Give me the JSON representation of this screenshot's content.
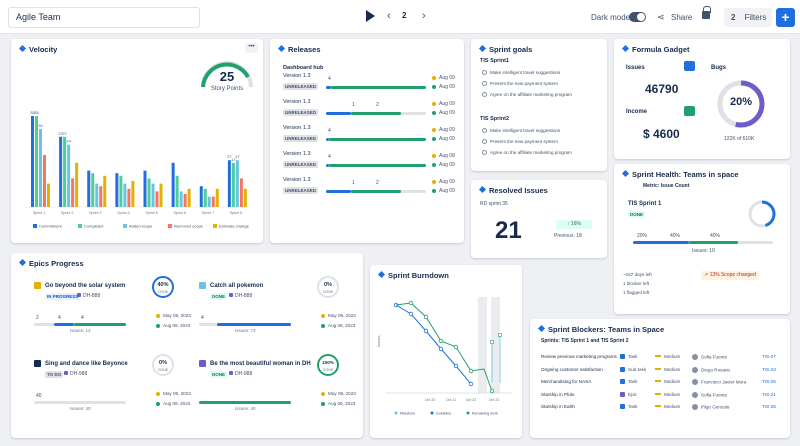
{
  "header": {
    "title": "Agile Team",
    "page": "2",
    "dark_mode_label": "Dark mode",
    "share_label": "Share",
    "filters_count": "2",
    "filters_label": "Filters",
    "add_label": "+"
  },
  "velocity": {
    "title": "Velocity",
    "gauge_value": "25",
    "gauge_label": "Story Points",
    "more": "•••",
    "chart_data": {
      "type": "bar",
      "categories": [
        "Sprint 1",
        "Sprint 2",
        "Sprint 3",
        "Sprint 4",
        "Sprint 5",
        "Sprint 6",
        "Sprint 7",
        "Sprint 8"
      ],
      "series": [
        {
          "name": "Commitment",
          "color": "#1f6fde",
          "values": [
            35,
            27,
            14,
            13,
            14,
            17,
            8,
            18
          ]
        },
        {
          "name": "Completed",
          "color": "#4bce97",
          "values": [
            35,
            27,
            13,
            12,
            11,
            12,
            7,
            17
          ]
        },
        {
          "name": "Added scope",
          "color": "#6cc3e0",
          "values": [
            30,
            24,
            9,
            9,
            9,
            6,
            4,
            18
          ]
        },
        {
          "name": "Removed scope",
          "color": "#f87462",
          "values": [
            20,
            11,
            8,
            7,
            6,
            5,
            4,
            11
          ]
        },
        {
          "name": "Estimate change",
          "color": "#e2b203",
          "values": [
            9,
            17,
            12,
            10,
            9,
            7,
            7,
            7
          ]
        }
      ],
      "data_labels": [
        "35",
        "35",
        "30",
        "27",
        "27",
        "24",
        "27",
        "17",
        "17",
        "17",
        "17",
        "18",
        "18",
        "17",
        "17"
      ],
      "ylim": [
        0,
        40
      ]
    }
  },
  "releases": {
    "title": "Releases",
    "hub": "Dashboard hub",
    "unreleased": "UNRELEASED",
    "items": [
      {
        "name": "Version 1.3",
        "a": "4",
        "b": "",
        "c": "",
        "d1": "Aug 09",
        "d2": "Aug 09",
        "blue": 0.05,
        "green": 0.95
      },
      {
        "name": "Version 1.3",
        "a": "1",
        "b": "1",
        "c": "2",
        "d1": "Aug 09",
        "d2": "Aug 09",
        "blue": 0.25,
        "green": 0.5
      },
      {
        "name": "Version 1.3",
        "a": "4",
        "b": "",
        "c": "",
        "d1": "Aug 09",
        "d2": "Aug 09",
        "blue": 0.03,
        "green": 0.97
      },
      {
        "name": "Version 1.3",
        "a": "4",
        "b": "",
        "c": "",
        "d1": "Aug 08",
        "d2": "Aug 09",
        "blue": 0.03,
        "green": 0.97
      },
      {
        "name": "Version 1.3",
        "a": "1",
        "b": "1",
        "c": "2",
        "d1": "Aug 09",
        "d2": "Aug 09",
        "blue": 0.25,
        "green": 0.5
      }
    ]
  },
  "sprint_goals": {
    "title": "Sprint goals",
    "groups": [
      {
        "name": "TIS Sprint1",
        "items": [
          "Make intelligent travel suggestions",
          "Present the new payment system",
          "Agree on the affiliate marketing program"
        ]
      },
      {
        "name": "TIS Sprint2",
        "items": [
          "Make intelligent travel suggestions",
          "Present the new payment system",
          "Agree on the affiliate marketing program"
        ]
      }
    ]
  },
  "resolved": {
    "title": "Resolved Issues",
    "sprint": "RD sprint 35",
    "value": "21",
    "change": "↑ 16%",
    "previous": "Previous: 18"
  },
  "formula": {
    "title": "Formula Gadget",
    "issues_label": "Issues",
    "issues_value": "46790",
    "bugs_label": "Bugs",
    "income_label": "Income",
    "income_value": "$ 4600",
    "pct": "20%",
    "pct_value": 0.2,
    "sub": "122K of 610K"
  },
  "epics": {
    "title": "Epics Progress",
    "items": [
      {
        "name": "Go beyond the solar system",
        "status": "IN PROGRESS",
        "key": "DH-888",
        "pct": "40%",
        "pct_value": 0.4,
        "done": "DONE",
        "n1": "2",
        "n2": "4",
        "n3": "4",
        "issues": "Issues: 12",
        "date1": "May 09, 2023",
        "date2": "Aug 09, 2023",
        "color": "#e2b203"
      },
      {
        "name": "Catch all pokemon",
        "status": "DONE",
        "key": "DH-888",
        "pct": "0%",
        "pct_value": 0.0,
        "done": "DONE",
        "n1": "4",
        "n2": "",
        "n3": "",
        "issues": "Issues: 73",
        "date1": "May 09, 2023",
        "date2": "Aug 09, 2023",
        "color": "#6cc3e0"
      },
      {
        "name": "Sing and dance like Beyonce",
        "status": "TO DO",
        "key": "DH-988",
        "pct": "0%",
        "pct_value": 0.0,
        "done": "DONE",
        "n1": "40",
        "n2": "",
        "n3": "",
        "issues": "Issues: 40",
        "date1": "May 09, 2023",
        "date2": "Aug 09, 2023",
        "color": "#172b4d"
      },
      {
        "name": "Be the most beautiful woman in DH",
        "status": "DONE",
        "key": "DH-988",
        "pct": "100%",
        "pct_value": 1.0,
        "done": "DONE",
        "n1": "",
        "n2": "",
        "n3": "",
        "issues": "Issues: 40",
        "date1": "May 09, 2023",
        "date2": "Aug 09, 2023",
        "color": "#6e5dc6"
      }
    ]
  },
  "burndown": {
    "title": "Sprint Burndown",
    "ylabel": "Issues",
    "x": [
      "Oct 20",
      "Oct 21",
      "Oct 22",
      "Oct 23"
    ],
    "legend": [
      "Milestone",
      "Guideline",
      "Remaining work"
    ]
  },
  "health": {
    "title": "Sprint Health: Teams in space",
    "metric": "Metric: Issue Count",
    "sprint": "TIS Sprint 1",
    "status": "DONE",
    "pct1": "20%",
    "pct2": "40%",
    "pct3": "40%",
    "blue": 0.4,
    "green": 0.35,
    "days": "Issues: 10",
    "stats": [
      "~157 days left",
      "1 blocker left",
      "1 flagged left"
    ],
    "scope": "↗ 13% Scope changed"
  },
  "blockers": {
    "title": "Sprint Blockers: Teams in Space",
    "subtitle": "Sprints: TIS Sprint 1 and TIS Sprint 2",
    "rows": [
      {
        "summary": "Review previous marketing programs",
        "type": "Task",
        "priority": "Medium",
        "assignee": "Sofia Fuente",
        "key": "TIS-27"
      },
      {
        "summary": "Ongoing customer satisfaction",
        "type": "Sub-task",
        "priority": "Medium",
        "assignee": "Diego Rosario",
        "key": "TIS-23"
      },
      {
        "summary": "Merchandising for NASA",
        "type": "Task",
        "priority": "Medium",
        "assignee": "Francisco Javier Mora",
        "key": "TIS-25"
      },
      {
        "summary": "Starship in Pluto",
        "type": "Epic",
        "priority": "Medium",
        "assignee": "Sofia Fuente",
        "key": "TIS-21"
      },
      {
        "summary": "Starship in Earth",
        "type": "Task",
        "priority": "Medium",
        "assignee": "Iñigo Gonzalo",
        "key": "TIS-25"
      }
    ]
  }
}
